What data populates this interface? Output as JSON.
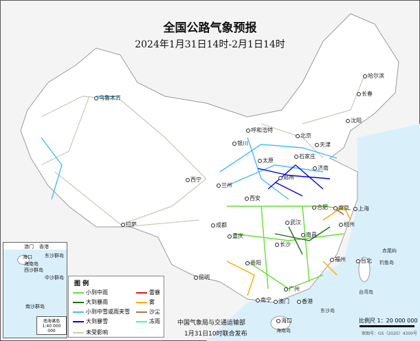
{
  "title": "全国公路气象预报",
  "subtitle": "2024年1月31日14时-2月1日14时",
  "legend": {
    "title": "图 例",
    "items": [
      {
        "label": "小到中雨",
        "color": "#66dd33"
      },
      {
        "label": "大到暴雨",
        "color": "#1a6f1a"
      },
      {
        "label": "小到中雪或雨夹雪",
        "color": "#44bbff"
      },
      {
        "label": "大到暴雪",
        "color": "#0000ee"
      },
      {
        "label": "未受影响",
        "color": "#c8c8b8"
      },
      {
        "label": "雷暴",
        "color": "#ee1111"
      },
      {
        "label": "雾",
        "color": "#ffaa00"
      },
      {
        "label": "沙尘",
        "color": "#b8703c"
      },
      {
        "label": "冻雨",
        "color": "#33ffaa"
      }
    ]
  },
  "cities": [
    "乌鲁木齐",
    "哈尔滨",
    "长春",
    "沈阳",
    "呼和浩特",
    "北京",
    "天津",
    "石家庄",
    "银川",
    "太原",
    "济南",
    "西宁",
    "兰州",
    "郑州",
    "西安",
    "合肥",
    "南京",
    "上海",
    "成都",
    "武汉",
    "杭州",
    "重庆",
    "长沙",
    "南昌",
    "拉萨",
    "贵阳",
    "福州",
    "台北",
    "昆明",
    "南宁",
    "广州",
    "澳门",
    "香港",
    "海口"
  ],
  "places": [
    "台湾岛",
    "赤尾屿",
    "钓鱼岛",
    "东沙岛",
    "海南岛"
  ],
  "inset": {
    "title": "南海诸岛",
    "scale": "1:40 000 000",
    "labels": [
      "海口",
      "海南岛",
      "西沙群岛",
      "中沙群岛",
      "南沙群岛",
      "东沙群岛",
      "香港",
      "澳门"
    ]
  },
  "footer": {
    "publisher": "中国气象局与交通运输部",
    "issued": "1月31日10时联合发布"
  },
  "scale": {
    "label": "比例尺 1：20 000 000",
    "approval": "审图号：GS（2020）4300号"
  }
}
